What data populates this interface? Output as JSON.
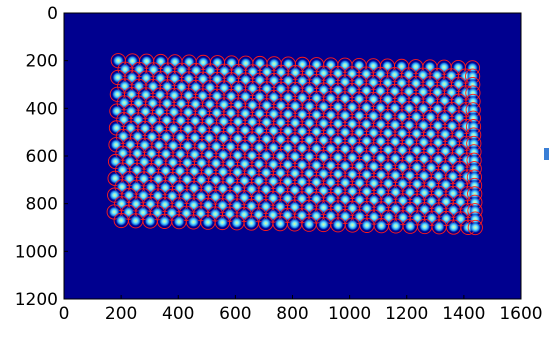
{
  "chart_data": {
    "type": "heatmap",
    "title": "",
    "xlabel": "",
    "ylabel": "",
    "xlim": [
      0,
      1600
    ],
    "ylim": [
      1200,
      0
    ],
    "x_ticks": [
      "0",
      "200",
      "400",
      "600",
      "800",
      "1000",
      "1200",
      "1400",
      "1600"
    ],
    "y_ticks": [
      "0",
      "200",
      "400",
      "600",
      "800",
      "1000",
      "1200"
    ],
    "grid": false,
    "legend": "none",
    "background_color": "#00008f",
    "spot_color": "#1cbcff",
    "spot_core_color": "#a8ffb0",
    "circle_color": "#ff1a1a",
    "lattice": {
      "rows": 20,
      "cols": 26,
      "corners": {
        "top_left": [
          190,
          200
        ],
        "top_right": [
          1430,
          230
        ],
        "bottom_left": [
          175,
          870
        ],
        "bottom_right": [
          1440,
          900
        ]
      },
      "circle_radius": 25
    }
  },
  "edge_mark_color": "#3a7fd6"
}
